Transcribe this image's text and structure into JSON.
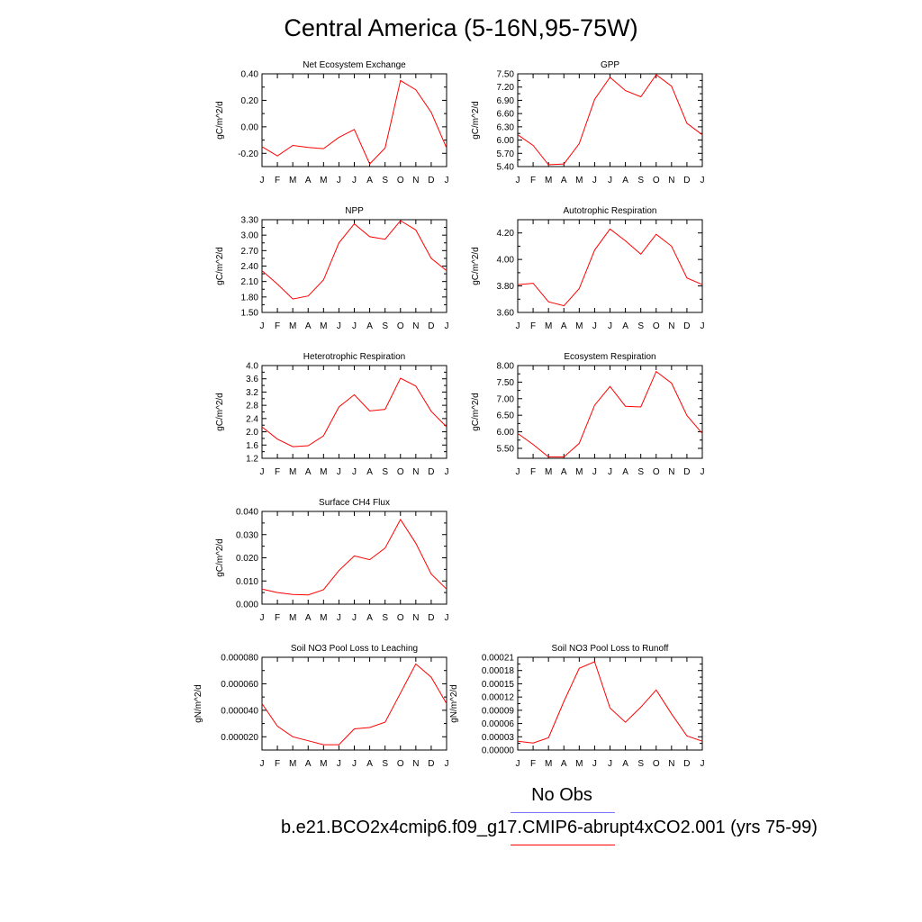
{
  "title": "Central America (5-16N,95-75W)",
  "colors": {
    "model": "#ff0000",
    "obs": "#7777ff",
    "axis": "#000000"
  },
  "legend": [
    {
      "label": "No Obs",
      "color": "#7777ff"
    },
    {
      "label": "b.e21.BCO2x4cmip6.f09_g17.CMIP6-abrupt4xCO2.001 (yrs 75-99)",
      "color": "#ff0000"
    }
  ],
  "chart_data": [
    {
      "type": "line",
      "title": "Net Ecosystem Exchange",
      "ylabel": "gC/m^2/d",
      "categories": [
        "J",
        "F",
        "M",
        "A",
        "M",
        "J",
        "J",
        "A",
        "S",
        "O",
        "N",
        "D",
        "J"
      ],
      "ylim": [
        -0.3,
        0.4
      ],
      "yticks": [
        "0.40",
        "0.20",
        "0.00",
        "-0.20"
      ],
      "series": [
        {
          "values": [
            -0.15,
            -0.22,
            -0.14,
            -0.155,
            -0.165,
            -0.08,
            -0.02,
            -0.28,
            -0.16,
            0.35,
            0.28,
            0.11,
            -0.16
          ]
        }
      ]
    },
    {
      "type": "line",
      "title": "GPP",
      "ylabel": "gC/m^2/d",
      "categories": [
        "J",
        "F",
        "M",
        "A",
        "M",
        "J",
        "J",
        "A",
        "S",
        "O",
        "N",
        "D",
        "J"
      ],
      "ylim": [
        5.4,
        7.5
      ],
      "yticks": [
        "7.50",
        "7.20",
        "6.90",
        "6.60",
        "6.30",
        "6.00",
        "5.70",
        "5.40"
      ],
      "series": [
        {
          "values": [
            6.12,
            5.88,
            5.44,
            5.46,
            5.92,
            6.92,
            7.42,
            7.12,
            6.98,
            7.48,
            7.22,
            6.38,
            6.12
          ]
        }
      ]
    },
    {
      "type": "line",
      "title": "NPP",
      "ylabel": "gC/m^2/d",
      "categories": [
        "J",
        "F",
        "M",
        "A",
        "M",
        "J",
        "J",
        "A",
        "S",
        "O",
        "N",
        "D",
        "J"
      ],
      "ylim": [
        1.5,
        3.3
      ],
      "yticks": [
        "3.30",
        "3.00",
        "2.70",
        "2.40",
        "2.10",
        "1.80",
        "1.50"
      ],
      "series": [
        {
          "values": [
            2.31,
            2.05,
            1.76,
            1.82,
            2.13,
            2.85,
            3.22,
            2.97,
            2.92,
            3.28,
            3.1,
            2.55,
            2.31
          ]
        }
      ]
    },
    {
      "type": "line",
      "title": "Autotrophic Respiration",
      "ylabel": "gC/m^2/d",
      "categories": [
        "J",
        "F",
        "M",
        "A",
        "M",
        "J",
        "J",
        "A",
        "S",
        "O",
        "N",
        "D",
        "J"
      ],
      "ylim": [
        3.6,
        4.3
      ],
      "yticks": [
        "4.20",
        "4.00",
        "3.80",
        "3.60"
      ],
      "series": [
        {
          "values": [
            3.81,
            3.82,
            3.68,
            3.65,
            3.78,
            4.07,
            4.23,
            4.14,
            4.04,
            4.19,
            4.1,
            3.86,
            3.81
          ]
        }
      ]
    },
    {
      "type": "line",
      "title": "Heterotrophic Respiration",
      "ylabel": "gC/m^2/d",
      "categories": [
        "J",
        "F",
        "M",
        "A",
        "M",
        "J",
        "J",
        "A",
        "S",
        "O",
        "N",
        "D",
        "J"
      ],
      "ylim": [
        1.2,
        4.0
      ],
      "yticks": [
        "4.0",
        "3.6",
        "3.2",
        "2.8",
        "2.4",
        "2.0",
        "1.6",
        "1.2"
      ],
      "series": [
        {
          "values": [
            2.15,
            1.78,
            1.55,
            1.58,
            1.88,
            2.75,
            3.12,
            2.63,
            2.68,
            3.62,
            3.38,
            2.62,
            2.15
          ]
        }
      ]
    },
    {
      "type": "line",
      "title": "Ecosystem Respiration",
      "ylabel": "gC/m^2/d",
      "categories": [
        "J",
        "F",
        "M",
        "A",
        "M",
        "J",
        "J",
        "A",
        "S",
        "O",
        "N",
        "D",
        "J"
      ],
      "ylim": [
        5.2,
        8.0
      ],
      "yticks": [
        "8.00",
        "7.50",
        "7.00",
        "6.50",
        "6.00",
        "5.50"
      ],
      "series": [
        {
          "values": [
            5.95,
            5.62,
            5.24,
            5.24,
            5.65,
            6.8,
            7.37,
            6.77,
            6.75,
            7.82,
            7.47,
            6.49,
            5.95
          ]
        }
      ]
    },
    {
      "type": "line",
      "title": "Surface CH4 Flux",
      "ylabel": "gC/m^2/d",
      "categories": [
        "J",
        "F",
        "M",
        "A",
        "M",
        "J",
        "J",
        "A",
        "S",
        "O",
        "N",
        "D",
        "J"
      ],
      "ylim": [
        0.0,
        0.04
      ],
      "yticks": [
        "0.040",
        "0.030",
        "0.020",
        "0.010",
        "0.000"
      ],
      "series": [
        {
          "values": [
            0.0065,
            0.005,
            0.0042,
            0.004,
            0.0062,
            0.0145,
            0.0208,
            0.0192,
            0.0242,
            0.0365,
            0.0263,
            0.013,
            0.0065
          ]
        }
      ]
    },
    {
      "type": "line",
      "title": "Soil NO3 Pool Loss to Leaching",
      "ylabel": "gN/m^2/d",
      "categories": [
        "J",
        "F",
        "M",
        "A",
        "M",
        "J",
        "J",
        "A",
        "S",
        "O",
        "N",
        "D",
        "J"
      ],
      "ylim": [
        1e-05,
        8e-05
      ],
      "yticks": [
        "0.000080",
        "0.000060",
        "0.000040",
        "0.000020"
      ],
      "series": [
        {
          "values": [
            4.5e-05,
            2.8e-05,
            2e-05,
            1.7e-05,
            1.4e-05,
            1.4e-05,
            2.6e-05,
            2.7e-05,
            3.1e-05,
            5.3e-05,
            7.5e-05,
            6.5e-05,
            4.5e-05
          ]
        }
      ]
    },
    {
      "type": "line",
      "title": "Soil NO3 Pool Loss to Runoff",
      "ylabel": "gN/m^2/d",
      "categories": [
        "J",
        "F",
        "M",
        "A",
        "M",
        "J",
        "J",
        "A",
        "S",
        "O",
        "N",
        "D",
        "J"
      ],
      "ylim": [
        0.0,
        0.00021
      ],
      "yticks": [
        "0.00021",
        "0.00018",
        "0.00015",
        "0.00012",
        "0.00009",
        "0.00006",
        "0.00003",
        "0.00000"
      ],
      "series": [
        {
          "values": [
            2e-05,
            1.6e-05,
            2.8e-05,
            0.00011,
            0.000185,
            0.0002,
            9.5e-05,
            6.3e-05,
            9.7e-05,
            0.000136,
            8.2e-05,
            3.2e-05,
            2e-05
          ]
        }
      ]
    }
  ]
}
